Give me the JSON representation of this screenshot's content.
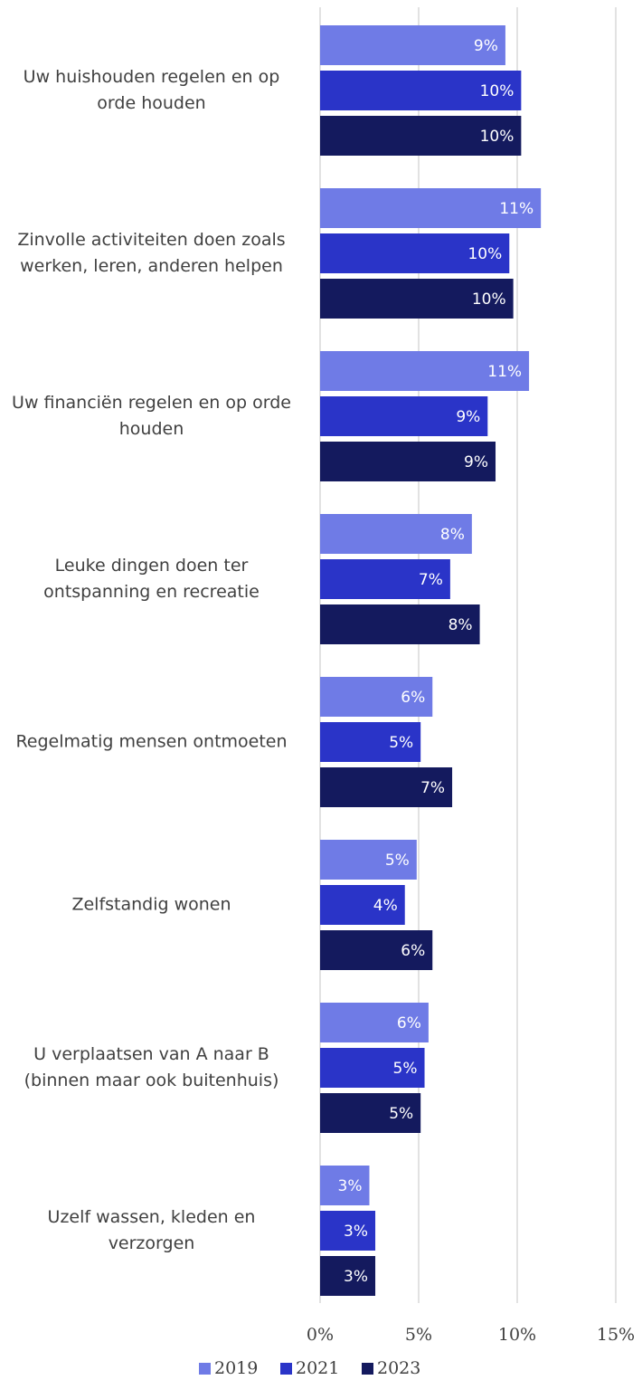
{
  "chart_data": {
    "type": "bar",
    "orientation": "horizontal",
    "categories": [
      "Uw huishouden regelen en op orde houden",
      "Zinvolle activiteiten doen zoals werken, leren, anderen helpen",
      "Uw financiën regelen en op orde houden",
      "Leuke dingen doen ter ontspanning en recreatie",
      "Regelmatig mensen ontmoeten",
      "Zelfstandig wonen",
      "U verplaatsen van A naar B (binnen maar ook buitenhuis)",
      "Uzelf wassen, kleden en verzorgen"
    ],
    "series": [
      {
        "name": "2019",
        "color": "#6f7be6",
        "values": [
          9.4,
          11.2,
          10.6,
          7.7,
          5.7,
          4.9,
          5.5,
          2.5
        ],
        "value_labels": [
          "9%",
          "11%",
          "11%",
          "8%",
          "6%",
          "5%",
          "6%",
          "3%"
        ]
      },
      {
        "name": "2021",
        "color": "#2a34c8",
        "values": [
          10.2,
          9.6,
          8.5,
          6.6,
          5.1,
          4.3,
          5.3,
          2.8
        ],
        "value_labels": [
          "10%",
          "10%",
          "9%",
          "7%",
          "5%",
          "4%",
          "5%",
          "3%"
        ]
      },
      {
        "name": "2023",
        "color": "#141a5e",
        "values": [
          10.2,
          9.8,
          8.9,
          8.1,
          6.7,
          5.7,
          5.1,
          2.8
        ],
        "value_labels": [
          "10%",
          "10%",
          "9%",
          "8%",
          "7%",
          "6%",
          "5%",
          "3%"
        ]
      }
    ],
    "xlim": [
      0,
      15
    ],
    "xticks": [
      {
        "value": 0,
        "label": "0%"
      },
      {
        "value": 5,
        "label": "5%"
      },
      {
        "value": 10,
        "label": "10%"
      },
      {
        "value": 15,
        "label": "15%"
      }
    ],
    "grid": true,
    "legend": "bottom"
  }
}
